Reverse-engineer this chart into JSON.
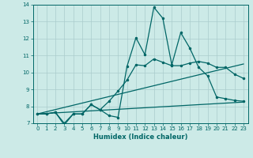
{
  "xlabel": "Humidex (Indice chaleur)",
  "bg_color": "#cceae7",
  "grid_color": "#aacccc",
  "line_color": "#006666",
  "xlim": [
    -0.5,
    23.5
  ],
  "ylim": [
    7,
    14
  ],
  "xticks": [
    0,
    1,
    2,
    3,
    4,
    5,
    6,
    7,
    8,
    9,
    10,
    11,
    12,
    13,
    14,
    15,
    16,
    17,
    18,
    19,
    20,
    21,
    22,
    23
  ],
  "yticks": [
    7,
    8,
    9,
    10,
    11,
    12,
    13,
    14
  ],
  "line1_x": [
    0,
    1,
    2,
    3,
    4,
    5,
    6,
    7,
    8,
    9,
    10,
    11,
    12,
    13,
    14,
    15,
    16,
    17,
    18,
    19,
    20,
    21,
    22,
    23
  ],
  "line1_y": [
    7.55,
    7.55,
    7.65,
    6.9,
    7.55,
    7.55,
    8.1,
    7.8,
    7.45,
    7.35,
    10.35,
    12.05,
    11.05,
    13.85,
    13.2,
    10.45,
    12.35,
    11.45,
    10.3,
    9.8,
    8.55,
    8.45,
    8.35,
    8.3
  ],
  "line2_x": [
    0,
    1,
    2,
    3,
    4,
    5,
    6,
    7,
    8,
    9,
    10,
    11,
    12,
    13,
    14,
    15,
    16,
    17,
    18,
    19,
    20,
    21,
    22,
    23
  ],
  "line2_y": [
    7.55,
    7.55,
    7.65,
    7.0,
    7.55,
    7.55,
    8.1,
    7.8,
    8.3,
    8.9,
    9.55,
    10.45,
    10.4,
    10.8,
    10.6,
    10.4,
    10.4,
    10.55,
    10.65,
    10.55,
    10.3,
    10.3,
    9.9,
    9.65
  ],
  "line3_x": [
    0,
    23
  ],
  "line3_y": [
    7.55,
    10.5
  ],
  "line4_x": [
    0,
    23
  ],
  "line4_y": [
    7.55,
    8.25
  ]
}
